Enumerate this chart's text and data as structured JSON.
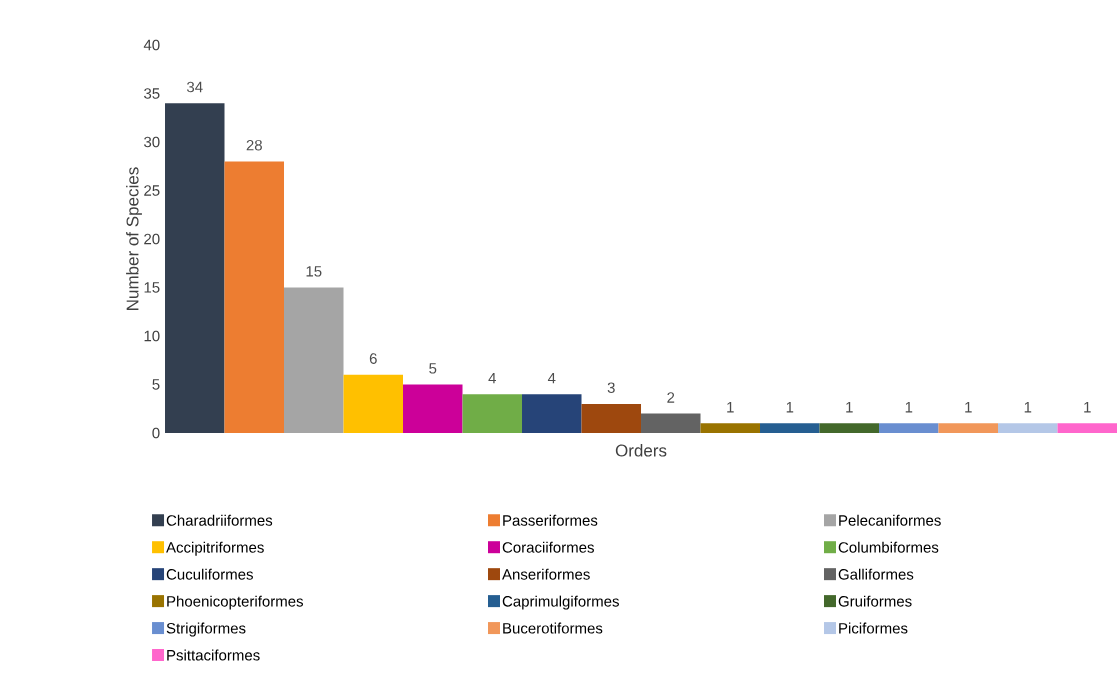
{
  "chart_data": {
    "type": "bar",
    "xlabel": "Orders",
    "ylabel": "Number  of Species",
    "categories": [
      null
    ],
    "series": [
      {
        "name": "Charadriiformes",
        "color": "#333f50",
        "values": [
          34
        ]
      },
      {
        "name": "Passeriformes",
        "color": "#ed7d31",
        "values": [
          28
        ]
      },
      {
        "name": "Pelecaniformes",
        "color": "#a5a5a5",
        "values": [
          15
        ]
      },
      {
        "name": "Accipitriformes",
        "color": "#ffc000",
        "values": [
          6
        ]
      },
      {
        "name": "Coraciiformes",
        "color": "#cc0099",
        "values": [
          5
        ]
      },
      {
        "name": "Columbiformes",
        "color": "#70ad47",
        "values": [
          4
        ]
      },
      {
        "name": "Cuculiformes",
        "color": "#264478",
        "values": [
          4
        ]
      },
      {
        "name": "Anseriformes",
        "color": "#9e480e",
        "values": [
          3
        ]
      },
      {
        "name": "Galliformes",
        "color": "#636363",
        "values": [
          2
        ]
      },
      {
        "name": "Phoenicopteriformes",
        "color": "#997300",
        "values": [
          1
        ]
      },
      {
        "name": "Caprimulgiformes",
        "color": "#255e91",
        "values": [
          1
        ]
      },
      {
        "name": "Gruiformes",
        "color": "#43682b",
        "values": [
          1
        ]
      },
      {
        "name": "Strigiformes",
        "color": "#698ed0",
        "values": [
          1
        ]
      },
      {
        "name": "Bucerotiformes",
        "color": "#f1975a",
        "values": [
          1
        ]
      },
      {
        "name": "Piciformes",
        "color": "#b4c7e7",
        "values": [
          1
        ]
      },
      {
        "name": "Psittaciformes",
        "color": "#ff66cc",
        "values": [
          1
        ]
      }
    ],
    "ylim": [
      0,
      40
    ],
    "yticks": [
      0,
      5,
      10,
      15,
      20,
      25,
      30,
      35,
      40
    ],
    "data_labels": true,
    "legend": "bottom",
    "grid": false
  }
}
